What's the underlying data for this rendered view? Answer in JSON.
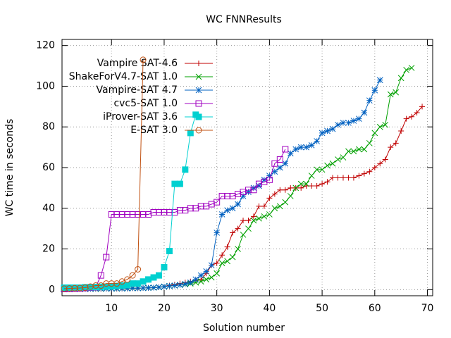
{
  "chart_data": {
    "type": "line",
    "title": "WC FNNResults",
    "x_label": "Solution number",
    "y_label": "WC time in seconds",
    "xlim": [
      0.6,
      71
    ],
    "ylim": [
      -3,
      123
    ],
    "xticks": [
      10,
      20,
      30,
      40,
      50,
      60,
      70
    ],
    "yticks": [
      0,
      20,
      40,
      60,
      80,
      100,
      120
    ],
    "grid": true,
    "legend": "top-left",
    "x": [
      1,
      2,
      3,
      4,
      5,
      6,
      7,
      8,
      9,
      10,
      11,
      12,
      13,
      14,
      15,
      16,
      17,
      18,
      19,
      20,
      21,
      22,
      23,
      24,
      25,
      26,
      27,
      28,
      29,
      30,
      31,
      32,
      33,
      34,
      35,
      36,
      37,
      38,
      39,
      40,
      41,
      42,
      43,
      44,
      45,
      46,
      47,
      48,
      49,
      50,
      51,
      52,
      53,
      54,
      55,
      56,
      57,
      58,
      59,
      60,
      61,
      62,
      63,
      64,
      65,
      66,
      67,
      68,
      69
    ],
    "series": [
      {
        "name": "Vampire SAT-4.6",
        "color": "#c00000",
        "marker": "plus",
        "values": [
          0.2,
          0.2,
          0.3,
          0.3,
          0.3,
          0.4,
          0.4,
          0.4,
          0.5,
          0.5,
          0.5,
          0.6,
          0.6,
          0.7,
          0.7,
          0.8,
          0.9,
          1,
          1.2,
          1.5,
          2,
          2.5,
          3,
          3.5,
          4,
          4.5,
          5,
          8,
          12,
          13,
          17,
          21,
          28,
          30,
          34,
          34,
          36,
          41,
          41,
          45,
          47,
          49,
          49,
          50,
          50,
          50,
          51,
          51,
          51,
          52,
          53,
          55,
          55,
          55,
          55,
          55,
          56,
          57,
          58,
          60,
          62,
          64,
          70,
          72,
          78,
          84,
          85,
          87,
          90
        ]
      },
      {
        "name": "ShakeForV4.7-SAT 1.0",
        "color": "#00a000",
        "marker": "cross",
        "values": [
          0.2,
          0.2,
          0.3,
          0.3,
          0.3,
          0.4,
          0.4,
          0.4,
          0.5,
          0.5,
          0.5,
          0.6,
          0.6,
          0.7,
          0.7,
          0.8,
          0.9,
          1,
          1.2,
          1.5,
          1.8,
          2,
          2.3,
          2.6,
          3,
          3.5,
          4,
          5,
          6,
          8,
          13,
          14,
          16,
          20,
          27,
          30,
          34,
          35,
          36,
          37,
          40,
          41,
          43,
          46,
          50,
          52,
          52,
          56,
          59,
          59,
          61,
          62,
          64,
          65,
          68,
          68,
          69,
          69,
          72,
          77,
          80,
          81,
          96,
          97,
          104,
          108,
          109,
          null,
          null
        ]
      },
      {
        "name": "Vampire-SAT 4.7",
        "color": "#0060c0",
        "marker": "star",
        "values": [
          0.3,
          0.3,
          0.3,
          0.4,
          0.4,
          0.4,
          0.5,
          0.5,
          0.5,
          0.5,
          0.6,
          0.6,
          0.6,
          0.7,
          0.7,
          0.8,
          0.9,
          1,
          1.2,
          1.5,
          1.8,
          2,
          2.3,
          2.8,
          3.5,
          5,
          7,
          9,
          12,
          28,
          37,
          39,
          40,
          42,
          46,
          48,
          50,
          51,
          54,
          56,
          58,
          60,
          62,
          67,
          69,
          70,
          70,
          71,
          73,
          77,
          78,
          79,
          81,
          82,
          82,
          83,
          84,
          87,
          93,
          98,
          103,
          null,
          null,
          null,
          null,
          null,
          null,
          null,
          null
        ]
      },
      {
        "name": "cvc5-SAT 1.0",
        "color": "#a000c0",
        "marker": "square",
        "values": [
          0.3,
          0.4,
          0.5,
          0.6,
          0.8,
          1,
          1.2,
          7,
          16,
          37,
          37,
          37,
          37,
          37,
          37,
          37,
          37,
          38,
          38,
          38,
          38,
          38,
          39,
          39,
          40,
          40,
          41,
          41,
          42,
          43,
          46,
          46,
          46,
          47,
          48,
          49,
          49,
          52,
          53,
          54,
          62,
          64,
          69,
          null,
          null,
          null,
          null,
          null,
          null,
          null,
          null,
          null,
          null,
          null,
          null,
          null,
          null,
          null,
          null,
          null,
          null,
          null,
          null,
          null,
          null,
          null,
          null,
          null,
          null
        ]
      },
      {
        "name": "iProver-SAT 3.6",
        "color": "#00d0d0",
        "marker": "filled-square",
        "values": [
          1,
          1,
          1,
          1,
          1.2,
          1.2,
          1.3,
          1.4,
          1.5,
          1.6,
          1.8,
          2,
          2.2,
          3,
          3,
          4,
          5,
          6,
          7,
          11,
          19,
          52,
          52,
          59,
          77,
          86,
          null,
          null,
          null,
          null,
          null,
          null,
          null,
          null,
          null,
          null,
          null,
          null,
          null,
          null,
          null,
          null,
          null,
          null,
          null,
          null,
          null,
          null,
          null,
          null,
          null,
          null,
          null,
          null,
          null,
          null,
          null,
          null,
          null,
          null,
          null,
          null,
          null,
          null,
          null,
          null,
          null,
          null,
          null
        ]
      },
      {
        "name": "E-SAT 3.0",
        "color": "#c05010",
        "marker": "circle",
        "values": [
          0.5,
          0.6,
          0.7,
          0.8,
          1,
          1.5,
          2,
          2,
          3,
          3,
          3,
          4,
          5,
          7,
          10,
          113,
          null,
          null,
          null,
          null,
          null,
          null,
          null,
          null,
          null,
          null,
          null,
          null,
          null,
          null,
          null,
          null,
          null,
          null,
          null,
          null,
          null,
          null,
          null,
          null,
          null,
          null,
          null,
          null,
          null,
          null,
          null,
          null,
          null,
          null,
          null,
          null,
          null,
          null,
          null,
          null,
          null,
          null,
          null,
          null,
          null,
          null,
          null,
          null,
          null,
          null,
          null,
          null,
          null
        ]
      }
    ]
  }
}
